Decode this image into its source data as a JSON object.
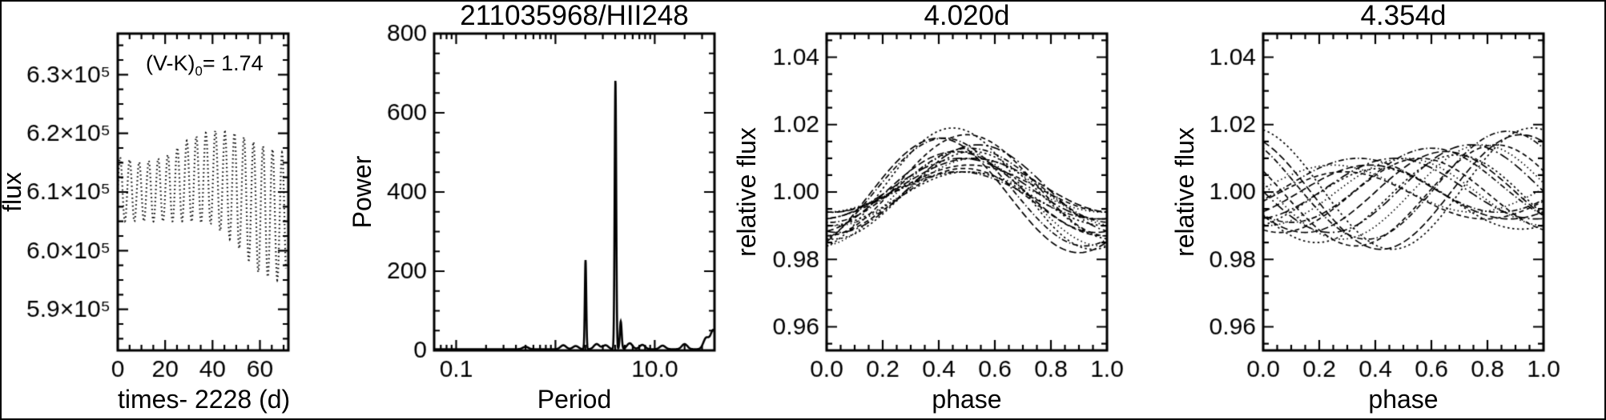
{
  "figure": {
    "background": "#ffffff",
    "line_color": "#000000",
    "border_color": "#000000"
  },
  "chart_data": [
    {
      "type": "line",
      "title": "",
      "xlabel": "times- 2228 (d)",
      "ylabel": "flux",
      "annotation": {
        "pre": "(V-K)",
        "sub": "0",
        "post": "= 1.74"
      },
      "xlim": [
        0,
        72
      ],
      "ylim": [
        583000,
        637000
      ],
      "xticks": [
        0,
        20,
        40,
        60
      ],
      "xtick_labels": [
        "0",
        "20",
        "40",
        "60"
      ],
      "xminor_step": 5,
      "yticks": [
        590000,
        600000,
        610000,
        620000,
        630000
      ],
      "ytick_labels": [
        "5.9×10⁵",
        "6.0×10⁵",
        "6.1×10⁵",
        "6.2×10⁵",
        "6.3×10⁵"
      ],
      "yminor_step": 2500,
      "grid": false,
      "lightcurve": {
        "period_d": 4.02,
        "samples_per_day": 12,
        "t_start": 0,
        "t_end": 71,
        "envelope_t_mean_amp": [
          [
            0,
            610500,
            5500
          ],
          [
            10,
            610000,
            5000
          ],
          [
            20,
            610500,
            5500
          ],
          [
            30,
            612000,
            7000
          ],
          [
            40,
            612500,
            8000
          ],
          [
            50,
            610500,
            9500
          ],
          [
            60,
            607000,
            11000
          ],
          [
            71,
            605500,
            11000
          ]
        ]
      }
    },
    {
      "type": "line",
      "title": "211035968/HII248",
      "xlabel": "Period",
      "ylabel": "Power",
      "xlog": true,
      "xlim": [
        0.06,
        40
      ],
      "ylim": [
        0,
        800
      ],
      "xticks": [
        0.1,
        1,
        10
      ],
      "xtick_labels": [
        "0.1",
        "",
        "10.0"
      ],
      "yticks": [
        0,
        200,
        400,
        600,
        800
      ],
      "ytick_labels": [
        "0",
        "200",
        "400",
        "600",
        "800"
      ],
      "yminor_step": 50,
      "grid": false,
      "baseline_power": 3,
      "peaks": [
        {
          "period": 2.01,
          "power": 225,
          "logwidth": 0.01
        },
        {
          "period": 4.02,
          "power": 680,
          "logwidth": 0.011
        },
        {
          "period": 4.55,
          "power": 70,
          "logwidth": 0.013
        }
      ],
      "noise_bumps": [
        {
          "period": 0.5,
          "power": 6
        },
        {
          "period": 1.2,
          "power": 10
        },
        {
          "period": 1.6,
          "power": 8
        },
        {
          "period": 2.6,
          "power": 13
        },
        {
          "period": 3.2,
          "power": 10
        },
        {
          "period": 5.6,
          "power": 15
        },
        {
          "period": 7.5,
          "power": 11
        },
        {
          "period": 12,
          "power": 9
        },
        {
          "period": 20,
          "power": 13
        },
        {
          "period": 33,
          "power": 28
        },
        {
          "period": 39,
          "power": 48
        }
      ]
    },
    {
      "type": "line",
      "title": "4.020d",
      "xlabel": "phase",
      "ylabel": "relative flux",
      "xlim": [
        0,
        1
      ],
      "ylim": [
        0.953,
        1.047
      ],
      "xticks": [
        0,
        0.2,
        0.4,
        0.6,
        0.8,
        1
      ],
      "xtick_labels": [
        "0.0",
        "0.2",
        "0.4",
        "0.6",
        "0.8",
        "1.0"
      ],
      "xminor_step": 0.05,
      "yticks": [
        0.96,
        0.98,
        1.0,
        1.02,
        1.04
      ],
      "ytick_labels": [
        "0.96",
        "0.98",
        "1.00",
        "1.02",
        "1.04"
      ],
      "yminor_step": 0.005,
      "grid": false,
      "fold_period_days": 4.02,
      "curves": [
        {
          "a": 0.006,
          "s": -0.01,
          "m": 0.0
        },
        {
          "a": 0.007,
          "s": 0.01,
          "m": 0.001
        },
        {
          "a": 0.007,
          "s": -0.03,
          "m": -0.001
        },
        {
          "a": 0.008,
          "s": 0.02,
          "m": 0.002
        },
        {
          "a": 0.008,
          "s": 0.0,
          "m": -0.002
        },
        {
          "a": 0.009,
          "s": -0.02,
          "m": 0.001
        },
        {
          "a": 0.01,
          "s": 0.03,
          "m": 0.0
        },
        {
          "a": 0.01,
          "s": -0.01,
          "m": -0.003
        },
        {
          "a": 0.011,
          "s": 0.01,
          "m": 0.002
        },
        {
          "a": 0.012,
          "s": -0.04,
          "m": 0.0
        },
        {
          "a": 0.013,
          "s": 0.02,
          "m": -0.001
        },
        {
          "a": 0.013,
          "s": 0.04,
          "m": 0.001
        },
        {
          "a": 0.014,
          "s": -0.02,
          "m": -0.002
        },
        {
          "a": 0.015,
          "s": 0.0,
          "m": 0.002
        },
        {
          "a": 0.016,
          "s": -0.08,
          "m": 0.0
        },
        {
          "a": 0.017,
          "s": -0.1,
          "m": -0.001
        },
        {
          "a": 0.018,
          "s": -0.05,
          "m": 0.001
        }
      ]
    },
    {
      "type": "line",
      "title": "4.354d",
      "xlabel": "phase",
      "ylabel": "relative flux",
      "xlim": [
        0,
        1
      ],
      "ylim": [
        0.953,
        1.047
      ],
      "xticks": [
        0,
        0.2,
        0.4,
        0.6,
        0.8,
        1
      ],
      "xtick_labels": [
        "0.0",
        "0.2",
        "0.4",
        "0.6",
        "0.8",
        "1.0"
      ],
      "xminor_step": 0.05,
      "yticks": [
        0.96,
        0.98,
        1.0,
        1.02,
        1.04
      ],
      "ytick_labels": [
        "0.96",
        "0.98",
        "1.00",
        "1.02",
        "1.04"
      ],
      "yminor_step": 0.005,
      "grid": false,
      "fold_period_days": 4.354,
      "curves": [
        {
          "a": 0.007,
          "s": -0.25,
          "m": 0.001
        },
        {
          "a": 0.007,
          "s": -0.21,
          "m": -0.001
        },
        {
          "a": 0.008,
          "s": -0.16,
          "m": 0.002
        },
        {
          "a": 0.008,
          "s": -0.12,
          "m": 0.0
        },
        {
          "a": 0.009,
          "s": -0.08,
          "m": -0.002
        },
        {
          "a": 0.009,
          "s": -0.03,
          "m": 0.001
        },
        {
          "a": 0.01,
          "s": 0.01,
          "m": 0.0
        },
        {
          "a": 0.011,
          "s": 0.06,
          "m": -0.001
        },
        {
          "a": 0.011,
          "s": 0.1,
          "m": 0.002
        },
        {
          "a": 0.012,
          "s": 0.15,
          "m": 0.0
        },
        {
          "a": 0.013,
          "s": 0.19,
          "m": -0.002
        },
        {
          "a": 0.013,
          "s": 0.24,
          "m": 0.001
        },
        {
          "a": 0.014,
          "s": 0.28,
          "m": 0.0
        },
        {
          "a": 0.015,
          "s": 0.33,
          "m": -0.001
        },
        {
          "a": 0.016,
          "s": 0.37,
          "m": 0.002
        },
        {
          "a": 0.017,
          "s": 0.42,
          "m": 0.0
        },
        {
          "a": 0.018,
          "s": 0.46,
          "m": 0.001
        }
      ]
    }
  ]
}
